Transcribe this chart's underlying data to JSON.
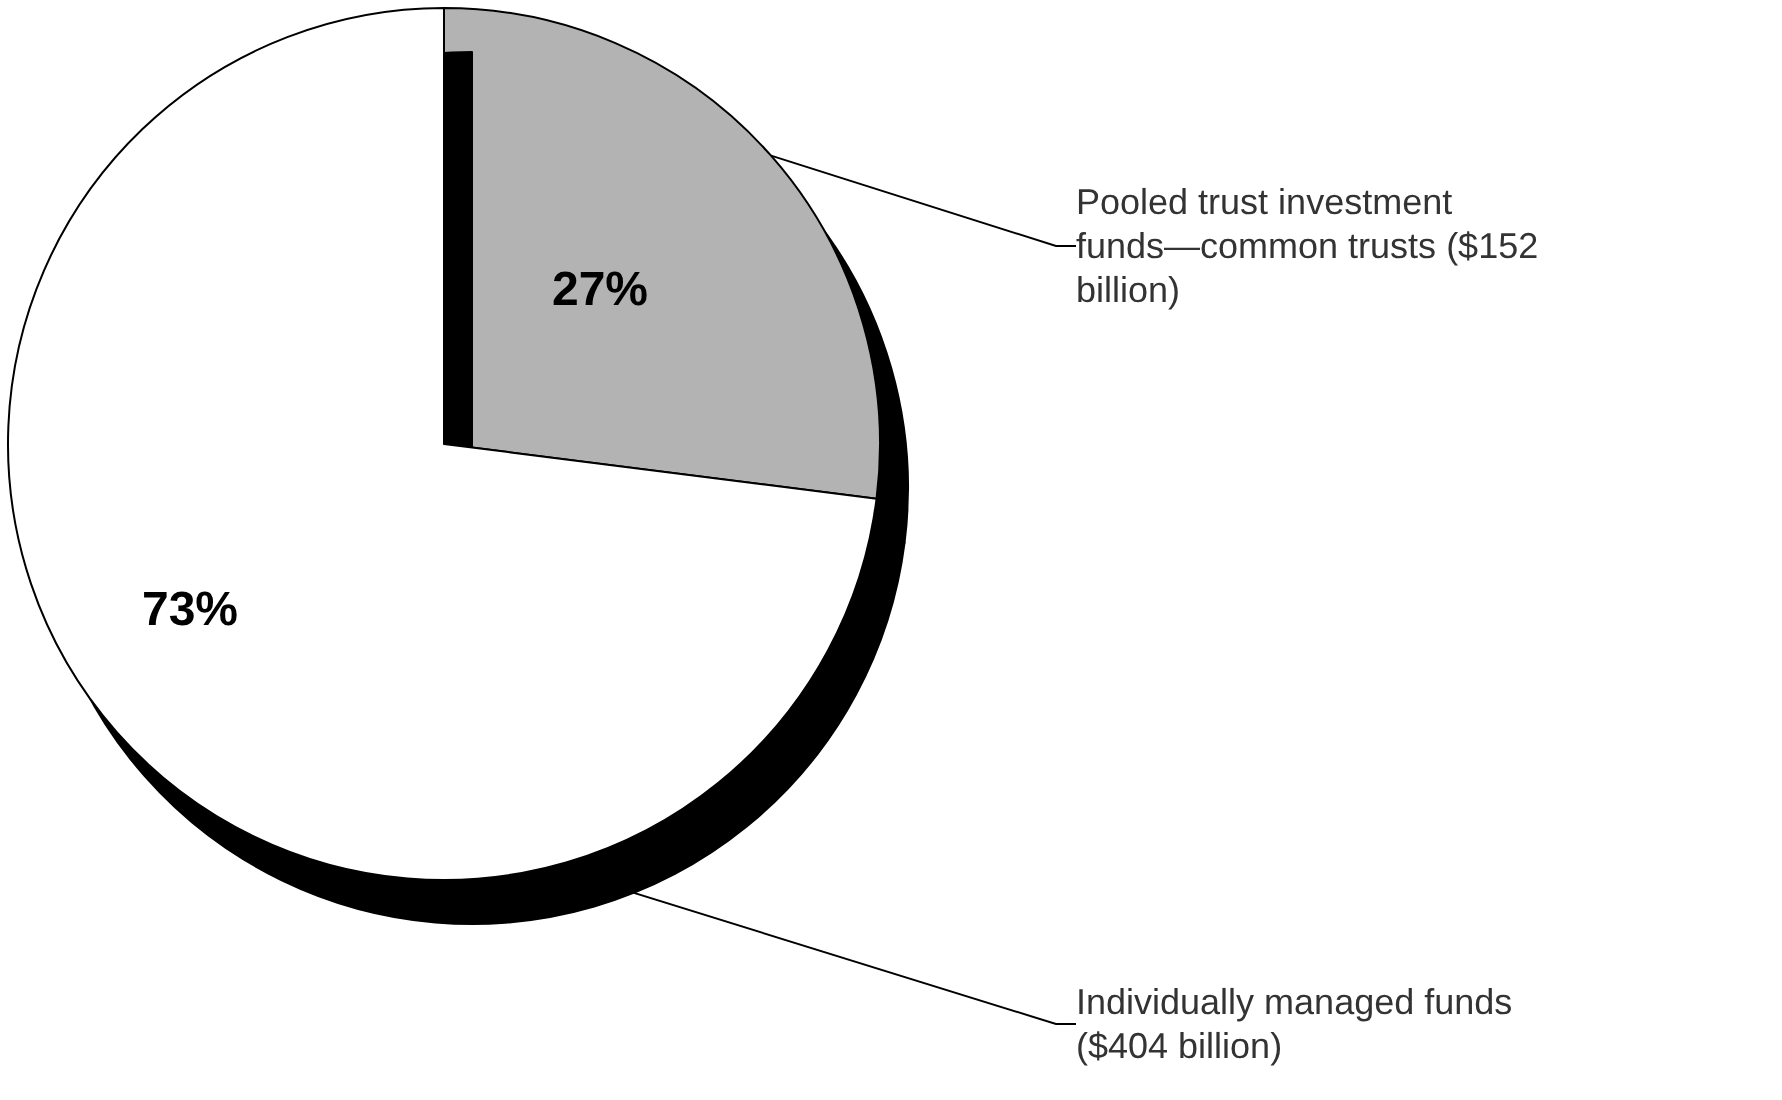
{
  "chart_data": {
    "type": "pie",
    "categories": [
      "Pooled trust investment funds—common trusts ($152 billion)",
      "Individually managed funds ($404 billion)"
    ],
    "values": [
      27,
      73
    ],
    "colors": [
      "#b3b3b3",
      "#ffffff"
    ],
    "value_labels": [
      "27%",
      "73%"
    ],
    "legend": false
  }
}
